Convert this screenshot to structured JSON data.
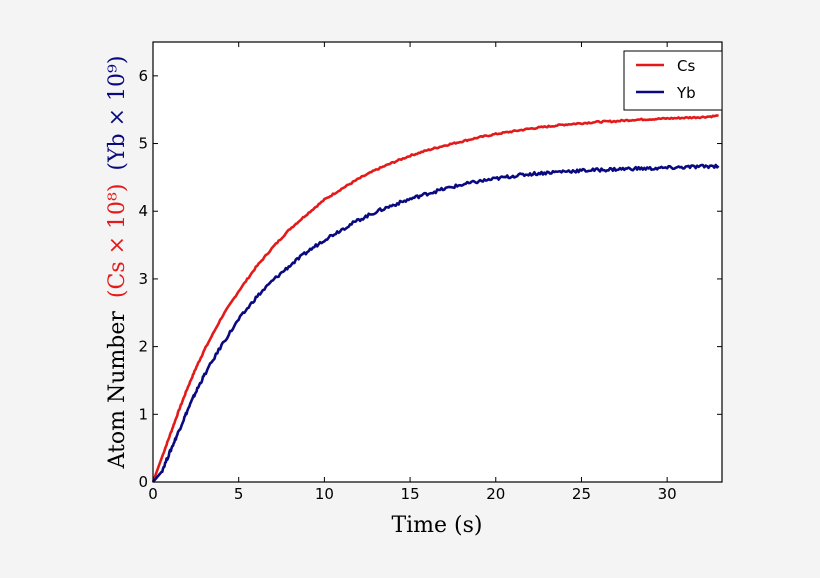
{
  "chart_data": {
    "type": "line",
    "title": "",
    "xlabel": "Time (s)",
    "ylabel": {
      "prefix": "Atom Number",
      "cs_part": "(Cs × 10⁸)",
      "yb_part": "(Yb × 10⁹)"
    },
    "xlim": [
      0,
      33.2
    ],
    "ylim": [
      0,
      6.5
    ],
    "xticks": [
      0,
      5,
      10,
      15,
      20,
      25,
      30
    ],
    "yticks": [
      0,
      1,
      2,
      3,
      4,
      5,
      6
    ],
    "grid": false,
    "legend_position": "upper right",
    "series": [
      {
        "name": "Cs",
        "color": "#e41a1a",
        "x": [
          0,
          0.5,
          1,
          1.5,
          2,
          2.5,
          3,
          4,
          5,
          6,
          7,
          8,
          9,
          10,
          11,
          12,
          13,
          14,
          15,
          16,
          17,
          18,
          19,
          20,
          21,
          22,
          23,
          24,
          25,
          26,
          27,
          28,
          29,
          30,
          31,
          32,
          33
        ],
        "values": [
          0,
          0.35,
          0.7,
          1.05,
          1.38,
          1.68,
          1.95,
          2.43,
          2.82,
          3.17,
          3.47,
          3.74,
          3.96,
          4.17,
          4.33,
          4.48,
          4.61,
          4.72,
          4.82,
          4.9,
          4.97,
          5.03,
          5.09,
          5.14,
          5.18,
          5.22,
          5.25,
          5.28,
          5.3,
          5.32,
          5.33,
          5.35,
          5.36,
          5.37,
          5.38,
          5.39,
          5.41
        ]
      },
      {
        "name": "Yb",
        "color": "#0a0a80",
        "x": [
          0,
          0.5,
          1,
          1.5,
          2,
          2.5,
          3,
          4,
          5,
          6,
          7,
          8,
          9,
          10,
          11,
          12,
          13,
          14,
          15,
          16,
          17,
          18,
          19,
          20,
          21,
          22,
          23,
          24,
          25,
          26,
          27,
          28,
          29,
          30,
          31,
          32,
          33
        ],
        "values": [
          0,
          0.15,
          0.45,
          0.75,
          1.05,
          1.33,
          1.58,
          2.02,
          2.4,
          2.72,
          2.98,
          3.2,
          3.4,
          3.58,
          3.73,
          3.87,
          3.99,
          4.09,
          4.18,
          4.26,
          4.33,
          4.39,
          4.44,
          4.48,
          4.52,
          4.55,
          4.57,
          4.59,
          4.6,
          4.61,
          4.62,
          4.63,
          4.63,
          4.64,
          4.65,
          4.66,
          4.67
        ]
      }
    ]
  },
  "legend": {
    "items": [
      {
        "label": "Cs",
        "color": "#e41a1a"
      },
      {
        "label": "Yb",
        "color": "#0a0a80"
      }
    ]
  }
}
